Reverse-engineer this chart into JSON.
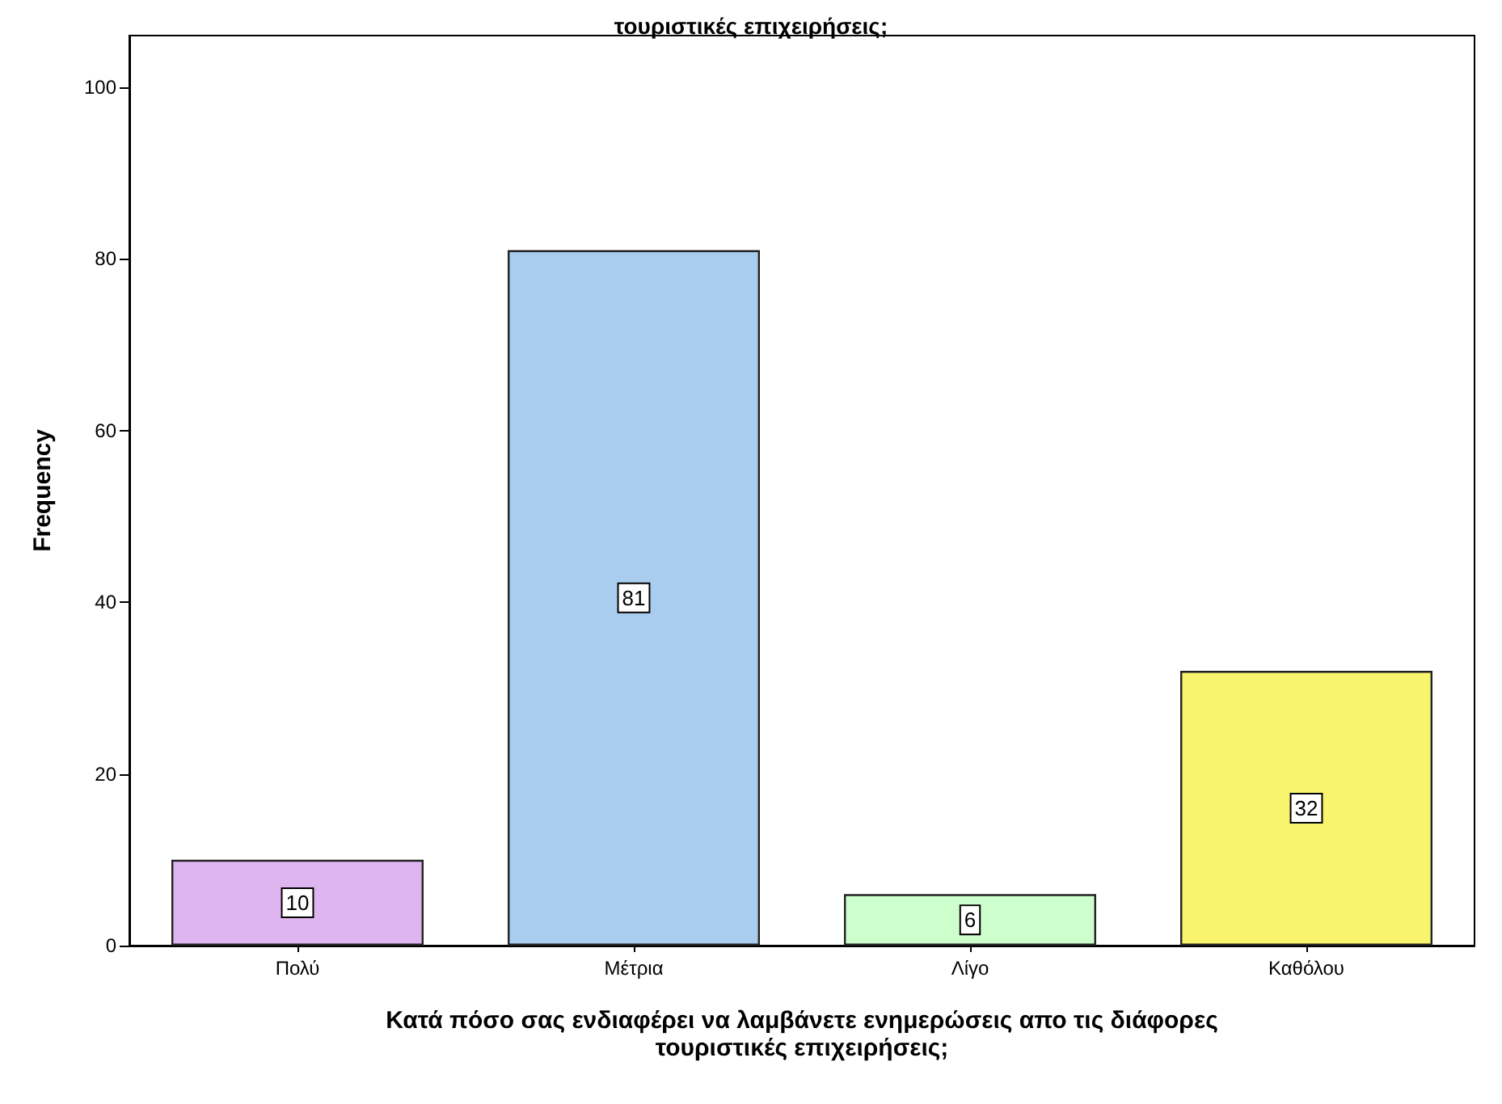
{
  "chart_data": {
    "type": "bar",
    "title": "τουριστικές επιχειρήσεις;",
    "xlabel": "Κατά πόσο σας ενδιαφέρει να λαμβάνετε ενημερώσεις απο τις διάφορες\nτουριστικές επιχειρήσεις;",
    "ylabel": "Frequency",
    "categories": [
      "Πολύ",
      "Μέτρια",
      "Λίγο",
      "Καθόλου"
    ],
    "values": [
      10,
      81,
      6,
      32
    ],
    "colors": [
      "#dfb5f0",
      "#a9cdee",
      "#ccffcc",
      "#f9f46e"
    ],
    "ylim": [
      0,
      106
    ],
    "yticks": [
      0,
      20,
      40,
      60,
      80,
      100
    ],
    "data_labels": true
  }
}
